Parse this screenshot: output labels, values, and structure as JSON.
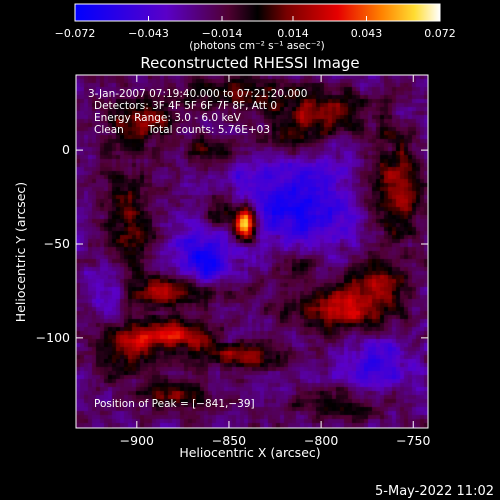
{
  "chart_data": {
    "type": "heatmap",
    "title": "Reconstructed RHESSI Image",
    "xlabel": "Heliocentric X (arcsec)",
    "ylabel": "Heliocentric Y (arcsec)",
    "xlim": [
      -933,
      -742
    ],
    "ylim": [
      -148,
      40
    ],
    "x_ticks": [
      -900,
      -850,
      -800,
      -750
    ],
    "x_tick_labels": [
      "−900",
      "−850",
      "−800",
      "−750"
    ],
    "y_ticks": [
      0,
      -50,
      -100
    ],
    "y_tick_labels": [
      "0",
      "−50",
      "−100"
    ],
    "colorbar": {
      "min": -0.072,
      "max": 0.072,
      "ticks": [
        -0.072,
        -0.043,
        -0.014,
        0.014,
        0.043,
        0.072
      ],
      "tick_labels": [
        "−0.072",
        "−0.043",
        "−0.014",
        "0.014",
        "0.043",
        "0.072"
      ],
      "unit_label": "(photons cm⁻² s⁻¹ asec⁻²)"
    },
    "annotations": {
      "time_range": "3-Jan-2007 07:19:40.000 to 07:21:20.000",
      "detectors": "Detectors: 3F 4F 5F 6F 7F 8F, Att 0",
      "energy_range": "Energy Range: 3.0 - 6.0 keV",
      "method": "Clean",
      "total_counts": "Total counts: 5.76E+03",
      "peak_position": "Position of Peak = [−841,−39]"
    },
    "peak": {
      "x": -841,
      "y": -39
    },
    "features": [
      {
        "x": -841,
        "y": -39,
        "value": 0.072,
        "sx": 4,
        "sy": 7
      },
      {
        "x": -855,
        "y": -33,
        "value": 0.03,
        "sx": 8,
        "sy": 8
      },
      {
        "x": -905,
        "y": -40,
        "value": 0.03,
        "sx": 10,
        "sy": 20
      },
      {
        "x": -878,
        "y": -75,
        "value": 0.045,
        "sx": 20,
        "sy": 6
      },
      {
        "x": -880,
        "y": -98,
        "value": 0.05,
        "sx": 14,
        "sy": 6
      },
      {
        "x": -845,
        "y": -110,
        "value": 0.04,
        "sx": 16,
        "sy": 5
      },
      {
        "x": -905,
        "y": -105,
        "value": 0.035,
        "sx": 12,
        "sy": 10
      },
      {
        "x": -790,
        "y": -85,
        "value": 0.045,
        "sx": 18,
        "sy": 8
      },
      {
        "x": -770,
        "y": -70,
        "value": 0.035,
        "sx": 12,
        "sy": 10
      },
      {
        "x": -760,
        "y": -20,
        "value": 0.04,
        "sx": 10,
        "sy": 20
      },
      {
        "x": -800,
        "y": 20,
        "value": 0.035,
        "sx": 18,
        "sy": 8
      },
      {
        "x": -845,
        "y": 30,
        "value": 0.03,
        "sx": 20,
        "sy": 6
      },
      {
        "x": -900,
        "y": 15,
        "value": 0.035,
        "sx": 14,
        "sy": 10
      },
      {
        "x": -820,
        "y": 5,
        "value": 0.025,
        "sx": 12,
        "sy": 6
      },
      {
        "x": -860,
        "y": 0,
        "value": 0.025,
        "sx": 10,
        "sy": 5
      },
      {
        "x": -880,
        "y": -130,
        "value": 0.03,
        "sx": 16,
        "sy": 6
      },
      {
        "x": -790,
        "y": -135,
        "value": 0.025,
        "sx": 16,
        "sy": 6
      },
      {
        "x": -815,
        "y": -60,
        "value": 0.028,
        "sx": 10,
        "sy": 8
      },
      {
        "x": -815,
        "y": -30,
        "value": -0.04,
        "sx": 25,
        "sy": 18
      },
      {
        "x": -865,
        "y": -60,
        "value": -0.04,
        "sx": 12,
        "sy": 12
      },
      {
        "x": -770,
        "y": -115,
        "value": -0.03,
        "sx": 12,
        "sy": 10
      },
      {
        "x": -915,
        "y": -75,
        "value": -0.025,
        "sx": 8,
        "sy": 10
      }
    ]
  },
  "footer": {
    "date_stamp": "5-May-2022 11:02"
  },
  "colors": {
    "background": "#000000",
    "text": "#ffffff"
  }
}
